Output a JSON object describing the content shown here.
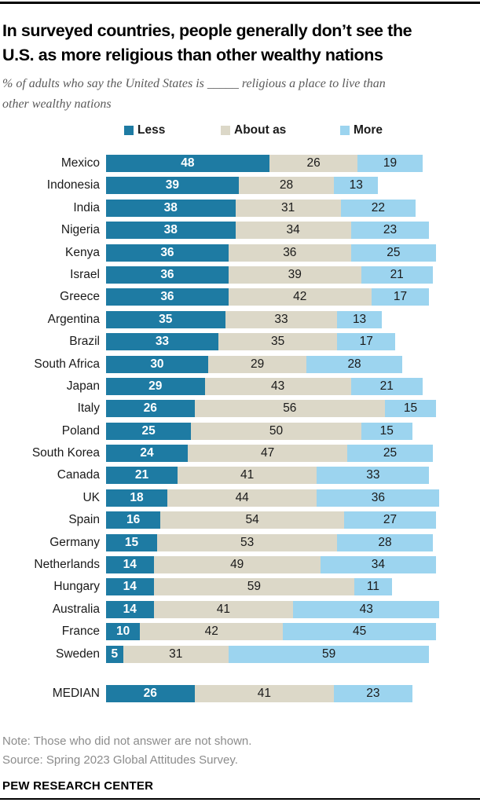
{
  "header": {
    "title_line1": "In surveyed countries, people generally don’t see the",
    "title_line2": "U.S. as more religious than other wealthy nations",
    "subtitle_line1": "% of adults who say the United States is _____ religious a place to live than",
    "subtitle_line2": "other wealthy nations"
  },
  "legend": [
    {
      "key": "less",
      "label": "Less",
      "color": "#1E7BA3"
    },
    {
      "key": "about-as",
      "label": "About as",
      "color": "#DCD8C8"
    },
    {
      "key": "more",
      "label": "More",
      "color": "#9CD4EF"
    }
  ],
  "chart_data": {
    "type": "bar",
    "stacked": true,
    "orientation": "horizontal",
    "xlim": [
      0,
      100
    ],
    "grid": false,
    "legend_position": "top",
    "categories": [
      "Mexico",
      "Indonesia",
      "India",
      "Nigeria",
      "Kenya",
      "Israel",
      "Greece",
      "Argentina",
      "Brazil",
      "South Africa",
      "Japan",
      "Italy",
      "Poland",
      "South Korea",
      "Canada",
      "UK",
      "Spain",
      "Germany",
      "Netherlands",
      "Hungary",
      "Australia",
      "France",
      "Sweden"
    ],
    "series": [
      {
        "name": "Less",
        "key": "less",
        "color": "#1E7BA3",
        "values": [
          48,
          39,
          38,
          38,
          36,
          36,
          36,
          35,
          33,
          30,
          29,
          26,
          25,
          24,
          21,
          18,
          16,
          15,
          14,
          14,
          14,
          10,
          5
        ]
      },
      {
        "name": "About as",
        "key": "about-as",
        "color": "#DCD8C8",
        "values": [
          26,
          28,
          31,
          34,
          36,
          39,
          42,
          33,
          35,
          29,
          43,
          56,
          50,
          47,
          41,
          44,
          54,
          53,
          49,
          59,
          41,
          42,
          31
        ]
      },
      {
        "name": "More",
        "key": "more",
        "color": "#9CD4EF",
        "values": [
          19,
          13,
          22,
          23,
          25,
          21,
          17,
          13,
          17,
          28,
          21,
          15,
          15,
          25,
          33,
          36,
          27,
          28,
          34,
          11,
          43,
          45,
          59
        ]
      }
    ],
    "median_row": {
      "label": "MEDIAN",
      "values": [
        26,
        41,
        23
      ]
    }
  },
  "footer": {
    "note": "Note: Those who did not answer are not shown.",
    "source": "Source: Spring 2023 Global Attitudes Survey.",
    "brand": "PEW RESEARCH CENTER"
  }
}
